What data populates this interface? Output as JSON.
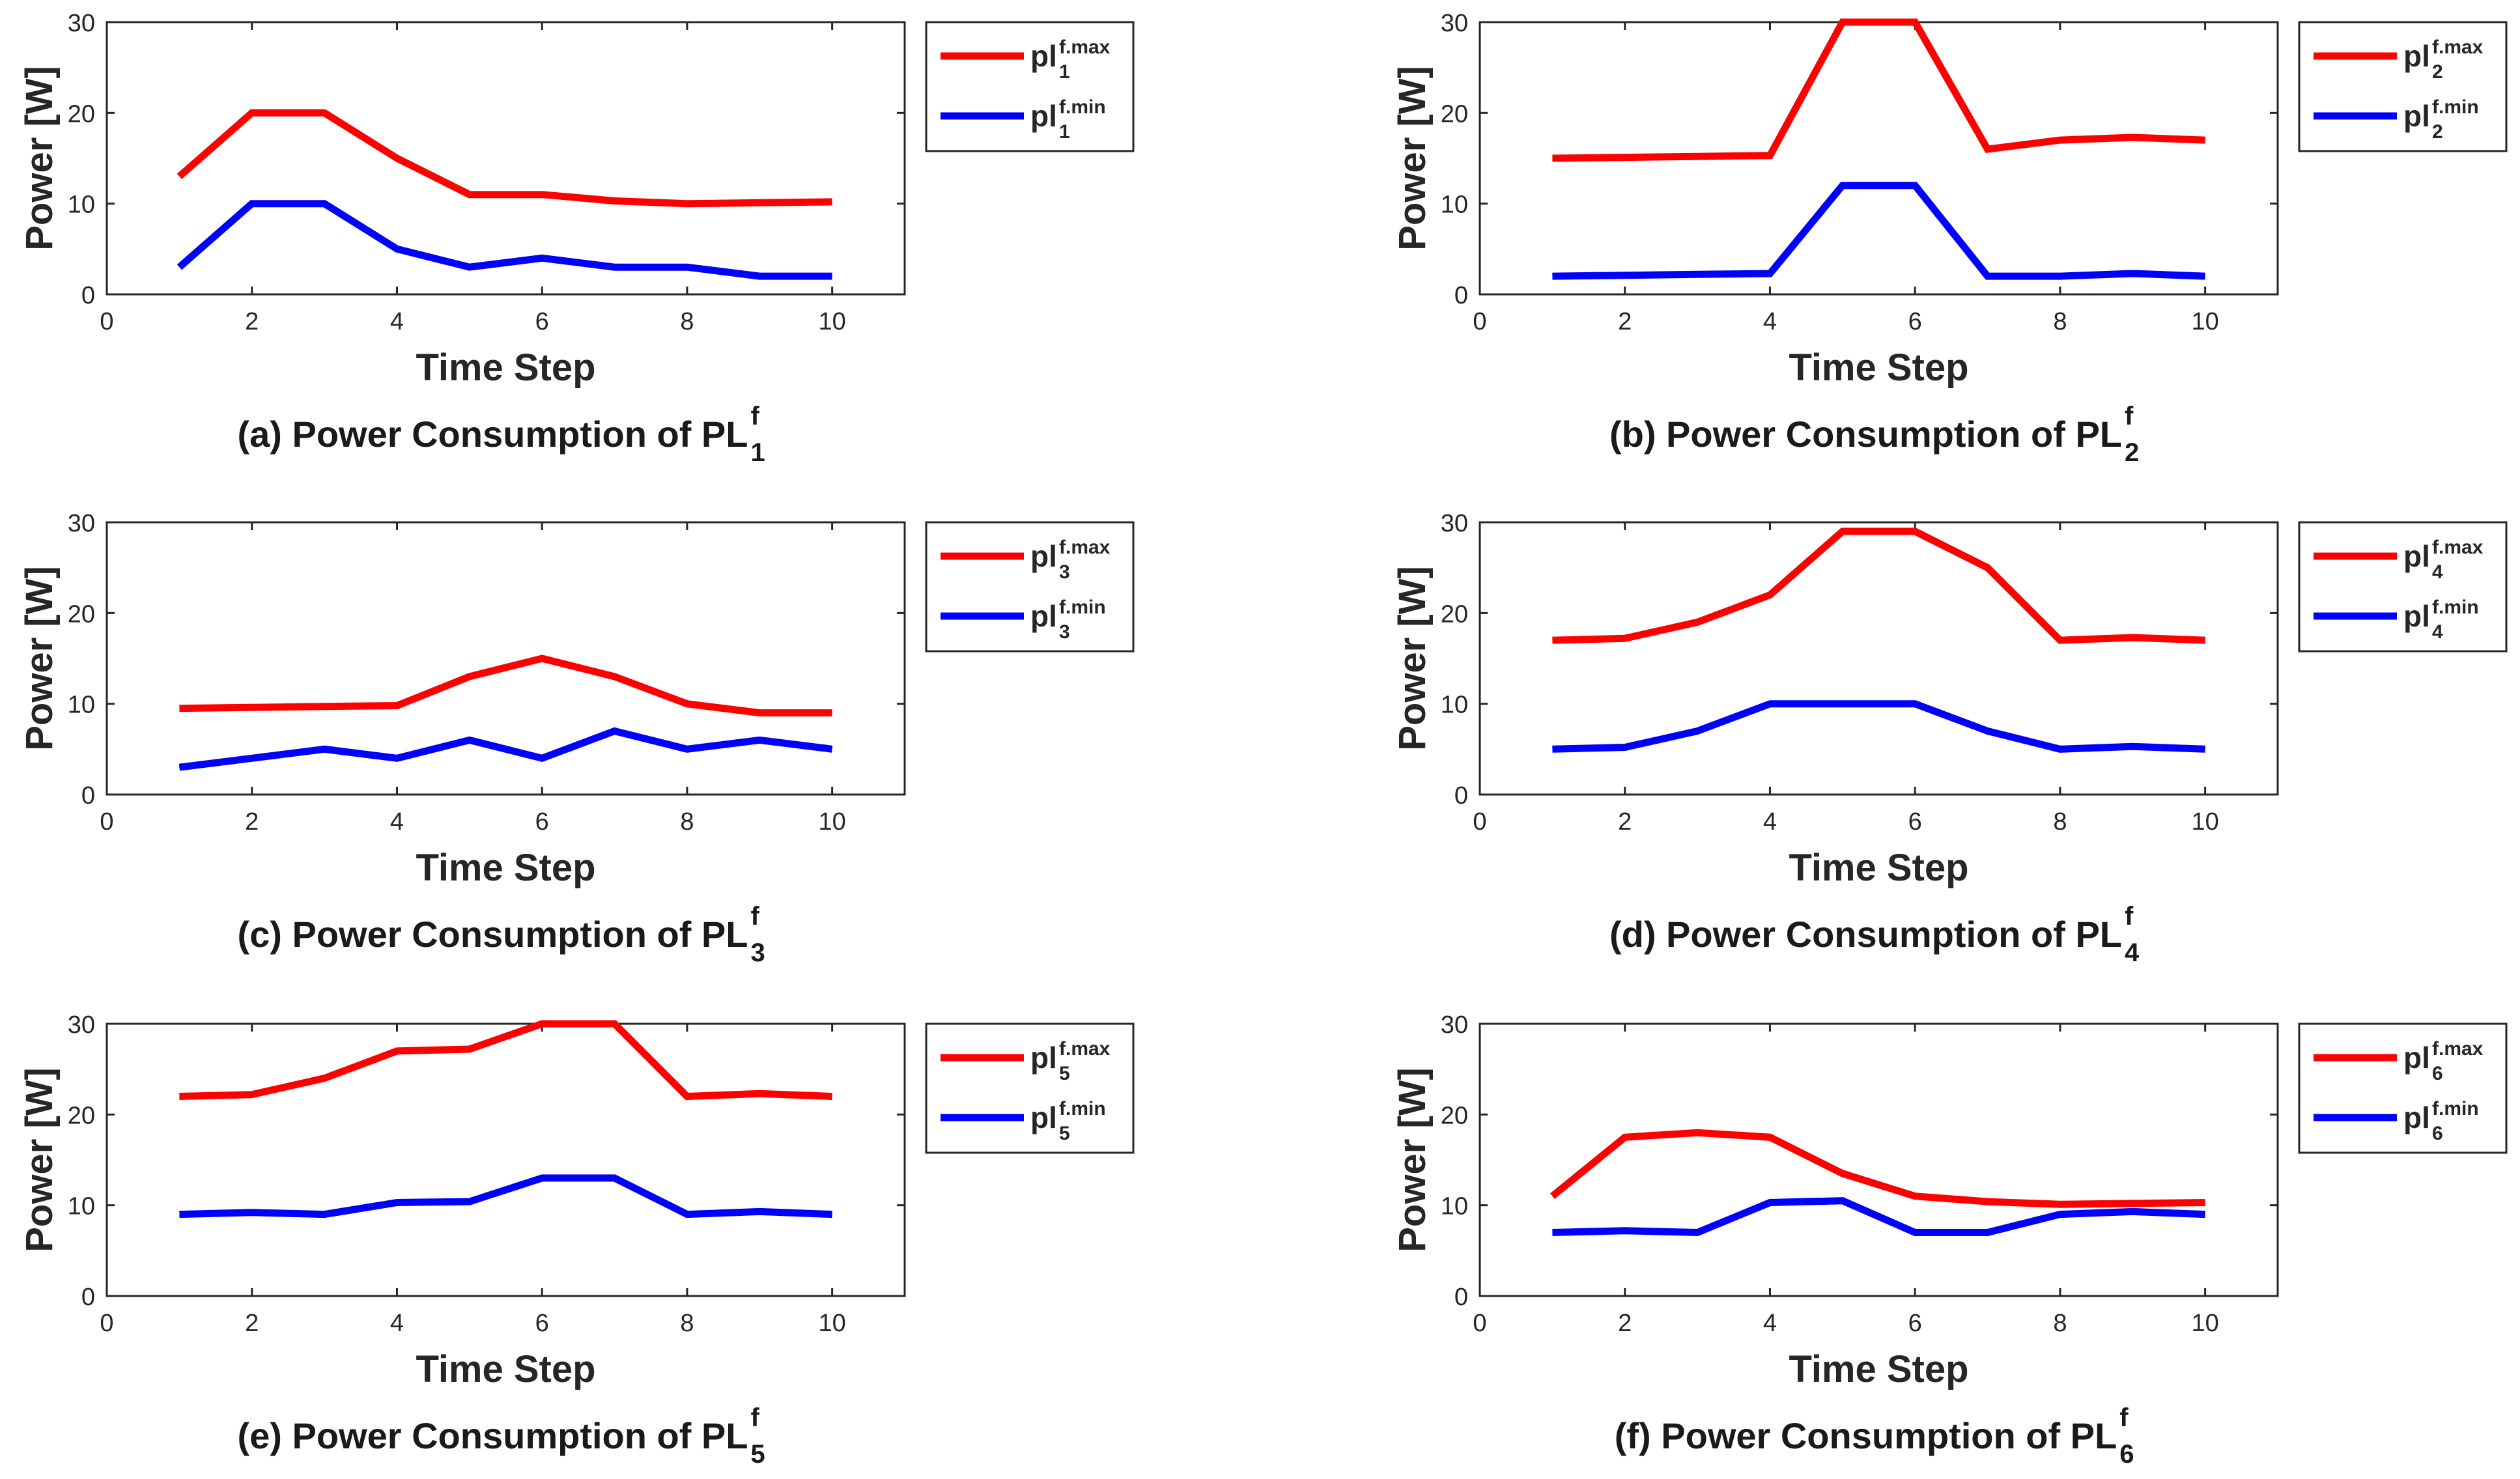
{
  "chart_data": [
    {
      "type": "line",
      "label": "(a)",
      "title": "(a) Power Consumption of PL",
      "title_sup": "f",
      "title_sub": "1",
      "xlabel": "Time Step",
      "ylabel": "Power [W]",
      "xlim": [
        0,
        11
      ],
      "ylim": [
        0,
        30
      ],
      "xticks": [
        0,
        2,
        4,
        6,
        8,
        10
      ],
      "yticks": [
        0,
        10,
        20,
        30
      ],
      "x": [
        1,
        2,
        3,
        4,
        5,
        6,
        7,
        8,
        9,
        10
      ],
      "series": [
        {
          "name": "pl",
          "sup": "f.max",
          "sub": "1",
          "color": "#ff0000",
          "values": [
            13,
            20,
            20,
            15,
            11,
            11,
            10.3,
            10,
            10.1,
            10.2
          ]
        },
        {
          "name": "pl",
          "sup": "f.min",
          "sub": "1",
          "color": "#0000ff",
          "values": [
            3,
            10,
            10,
            5,
            3,
            4,
            3,
            3,
            2,
            2
          ]
        }
      ]
    },
    {
      "type": "line",
      "label": "(b)",
      "title": "(b) Power Consumption of PL",
      "title_sup": "f",
      "title_sub": "2",
      "xlabel": "Time Step",
      "ylabel": "Power [W]",
      "xlim": [
        0,
        11
      ],
      "ylim": [
        0,
        30
      ],
      "xticks": [
        0,
        2,
        4,
        6,
        8,
        10
      ],
      "yticks": [
        0,
        10,
        20,
        30
      ],
      "x": [
        1,
        2,
        3,
        4,
        5,
        6,
        7,
        8,
        9,
        10
      ],
      "series": [
        {
          "name": "pl",
          "sup": "f.max",
          "sub": "2",
          "color": "#ff0000",
          "values": [
            15,
            15.1,
            15.2,
            15.3,
            30,
            30,
            16,
            17,
            17.3,
            17
          ]
        },
        {
          "name": "pl",
          "sup": "f.min",
          "sub": "2",
          "color": "#0000ff",
          "values": [
            2,
            2.1,
            2.2,
            2.3,
            12,
            12,
            2,
            2,
            2.3,
            2
          ]
        }
      ]
    },
    {
      "type": "line",
      "label": "(c)",
      "title": "(c) Power Consumption of PL",
      "title_sup": "f",
      "title_sub": "3",
      "xlabel": "Time Step",
      "ylabel": "Power [W]",
      "xlim": [
        0,
        11
      ],
      "ylim": [
        0,
        30
      ],
      "xticks": [
        0,
        2,
        4,
        6,
        8,
        10
      ],
      "yticks": [
        0,
        10,
        20,
        30
      ],
      "x": [
        1,
        2,
        3,
        4,
        5,
        6,
        7,
        8,
        9,
        10
      ],
      "series": [
        {
          "name": "pl",
          "sup": "f.max",
          "sub": "3",
          "color": "#ff0000",
          "values": [
            9.5,
            9.6,
            9.7,
            9.8,
            13,
            15,
            13,
            10,
            9,
            9
          ]
        },
        {
          "name": "pl",
          "sup": "f.min",
          "sub": "3",
          "color": "#0000ff",
          "values": [
            3,
            4,
            5,
            4,
            6,
            4,
            7,
            5,
            6,
            5
          ]
        }
      ]
    },
    {
      "type": "line",
      "label": "(d)",
      "title": "(d) Power Consumption of PL",
      "title_sup": "f",
      "title_sub": "4",
      "xlabel": "Time Step",
      "ylabel": "Power [W]",
      "xlim": [
        0,
        11
      ],
      "ylim": [
        0,
        30
      ],
      "xticks": [
        0,
        2,
        4,
        6,
        8,
        10
      ],
      "yticks": [
        0,
        10,
        20,
        30
      ],
      "x": [
        1,
        2,
        3,
        4,
        5,
        6,
        7,
        8,
        9,
        10
      ],
      "series": [
        {
          "name": "pl",
          "sup": "f.max",
          "sub": "4",
          "color": "#ff0000",
          "values": [
            17,
            17.2,
            19,
            22,
            29,
            29,
            25,
            17,
            17.3,
            17
          ]
        },
        {
          "name": "pl",
          "sup": "f.min",
          "sub": "4",
          "color": "#0000ff",
          "values": [
            5,
            5.2,
            7,
            10,
            10,
            10,
            7,
            5,
            5.3,
            5
          ]
        }
      ]
    },
    {
      "type": "line",
      "label": "(e)",
      "title": "(e) Power Consumption of PL",
      "title_sup": "f",
      "title_sub": "5",
      "xlabel": "Time Step",
      "ylabel": "Power [W]",
      "xlim": [
        0,
        11
      ],
      "ylim": [
        0,
        30
      ],
      "xticks": [
        0,
        2,
        4,
        6,
        8,
        10
      ],
      "yticks": [
        0,
        10,
        20,
        30
      ],
      "x": [
        1,
        2,
        3,
        4,
        5,
        6,
        7,
        8,
        9,
        10
      ],
      "series": [
        {
          "name": "pl",
          "sup": "f.max",
          "sub": "5",
          "color": "#ff0000",
          "values": [
            22,
            22.2,
            24,
            27,
            27.2,
            30,
            30,
            22,
            22.3,
            22
          ]
        },
        {
          "name": "pl",
          "sup": "f.min",
          "sub": "5",
          "color": "#0000ff",
          "values": [
            9,
            9.2,
            9,
            10.3,
            10.4,
            13,
            13,
            9,
            9.3,
            9
          ]
        }
      ]
    },
    {
      "type": "line",
      "label": "(f)",
      "title": "(f) Power Consumption of PL",
      "title_sup": "f",
      "title_sub": "6",
      "xlabel": "Time Step",
      "ylabel": "Power [W]",
      "xlim": [
        0,
        11
      ],
      "ylim": [
        0,
        30
      ],
      "xticks": [
        0,
        2,
        4,
        6,
        8,
        10
      ],
      "yticks": [
        0,
        10,
        20,
        30
      ],
      "x": [
        1,
        2,
        3,
        4,
        5,
        6,
        7,
        8,
        9,
        10
      ],
      "series": [
        {
          "name": "pl",
          "sup": "f.max",
          "sub": "6",
          "color": "#ff0000",
          "values": [
            11,
            17.5,
            18,
            17.5,
            13.5,
            11,
            10.4,
            10.1,
            10.2,
            10.3
          ]
        },
        {
          "name": "pl",
          "sup": "f.min",
          "sub": "6",
          "color": "#0000ff",
          "values": [
            7,
            7.2,
            7,
            10.3,
            10.5,
            7,
            7,
            9,
            9.3,
            9
          ]
        }
      ]
    }
  ]
}
